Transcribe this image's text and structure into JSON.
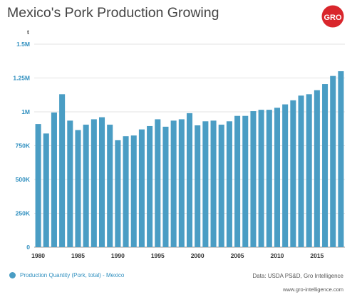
{
  "header": {
    "title": "Mexico's Pork Production Growing",
    "logo_text": "GRO",
    "logo_color": "#d9262c",
    "logo_icon": "gro-logo-icon"
  },
  "footer": {
    "source": "Data: USDA PS&D, Gro Intelligence",
    "website": "www.gro-intelligence.com"
  },
  "chart_data": {
    "type": "bar",
    "y_unit": "t",
    "ylim": [
      0,
      1500000
    ],
    "yticks": [
      0,
      250000,
      500000,
      750000,
      1000000,
      1250000,
      1500000
    ],
    "ytick_labels": [
      "0",
      "250K",
      "500K",
      "750K",
      "1M",
      "1.25M",
      "1.5M"
    ],
    "xticks": [
      1980,
      1985,
      1990,
      1995,
      2000,
      2005,
      2010,
      2015
    ],
    "grid": true,
    "legend_position": "bottom-left",
    "bar_color": "#4a9dc4",
    "axis_label_color": "#2f8fbf",
    "series": [
      {
        "name": "Production Quantity (Pork, total) - Mexico",
        "x": [
          1980,
          1981,
          1982,
          1983,
          1984,
          1985,
          1986,
          1987,
          1988,
          1989,
          1990,
          1991,
          1992,
          1993,
          1994,
          1995,
          1996,
          1997,
          1998,
          1999,
          2000,
          2001,
          2002,
          2003,
          2004,
          2005,
          2006,
          2007,
          2008,
          2009,
          2010,
          2011,
          2012,
          2013,
          2014,
          2015,
          2016,
          2017,
          2018
        ],
        "values": [
          910000,
          840000,
          995000,
          1130000,
          935000,
          865000,
          905000,
          945000,
          960000,
          905000,
          790000,
          820000,
          825000,
          870000,
          895000,
          945000,
          890000,
          935000,
          945000,
          990000,
          900000,
          930000,
          935000,
          905000,
          930000,
          970000,
          970000,
          1005000,
          1015000,
          1015000,
          1030000,
          1055000,
          1085000,
          1120000,
          1130000,
          1160000,
          1205000,
          1265000,
          1300000
        ]
      }
    ]
  }
}
